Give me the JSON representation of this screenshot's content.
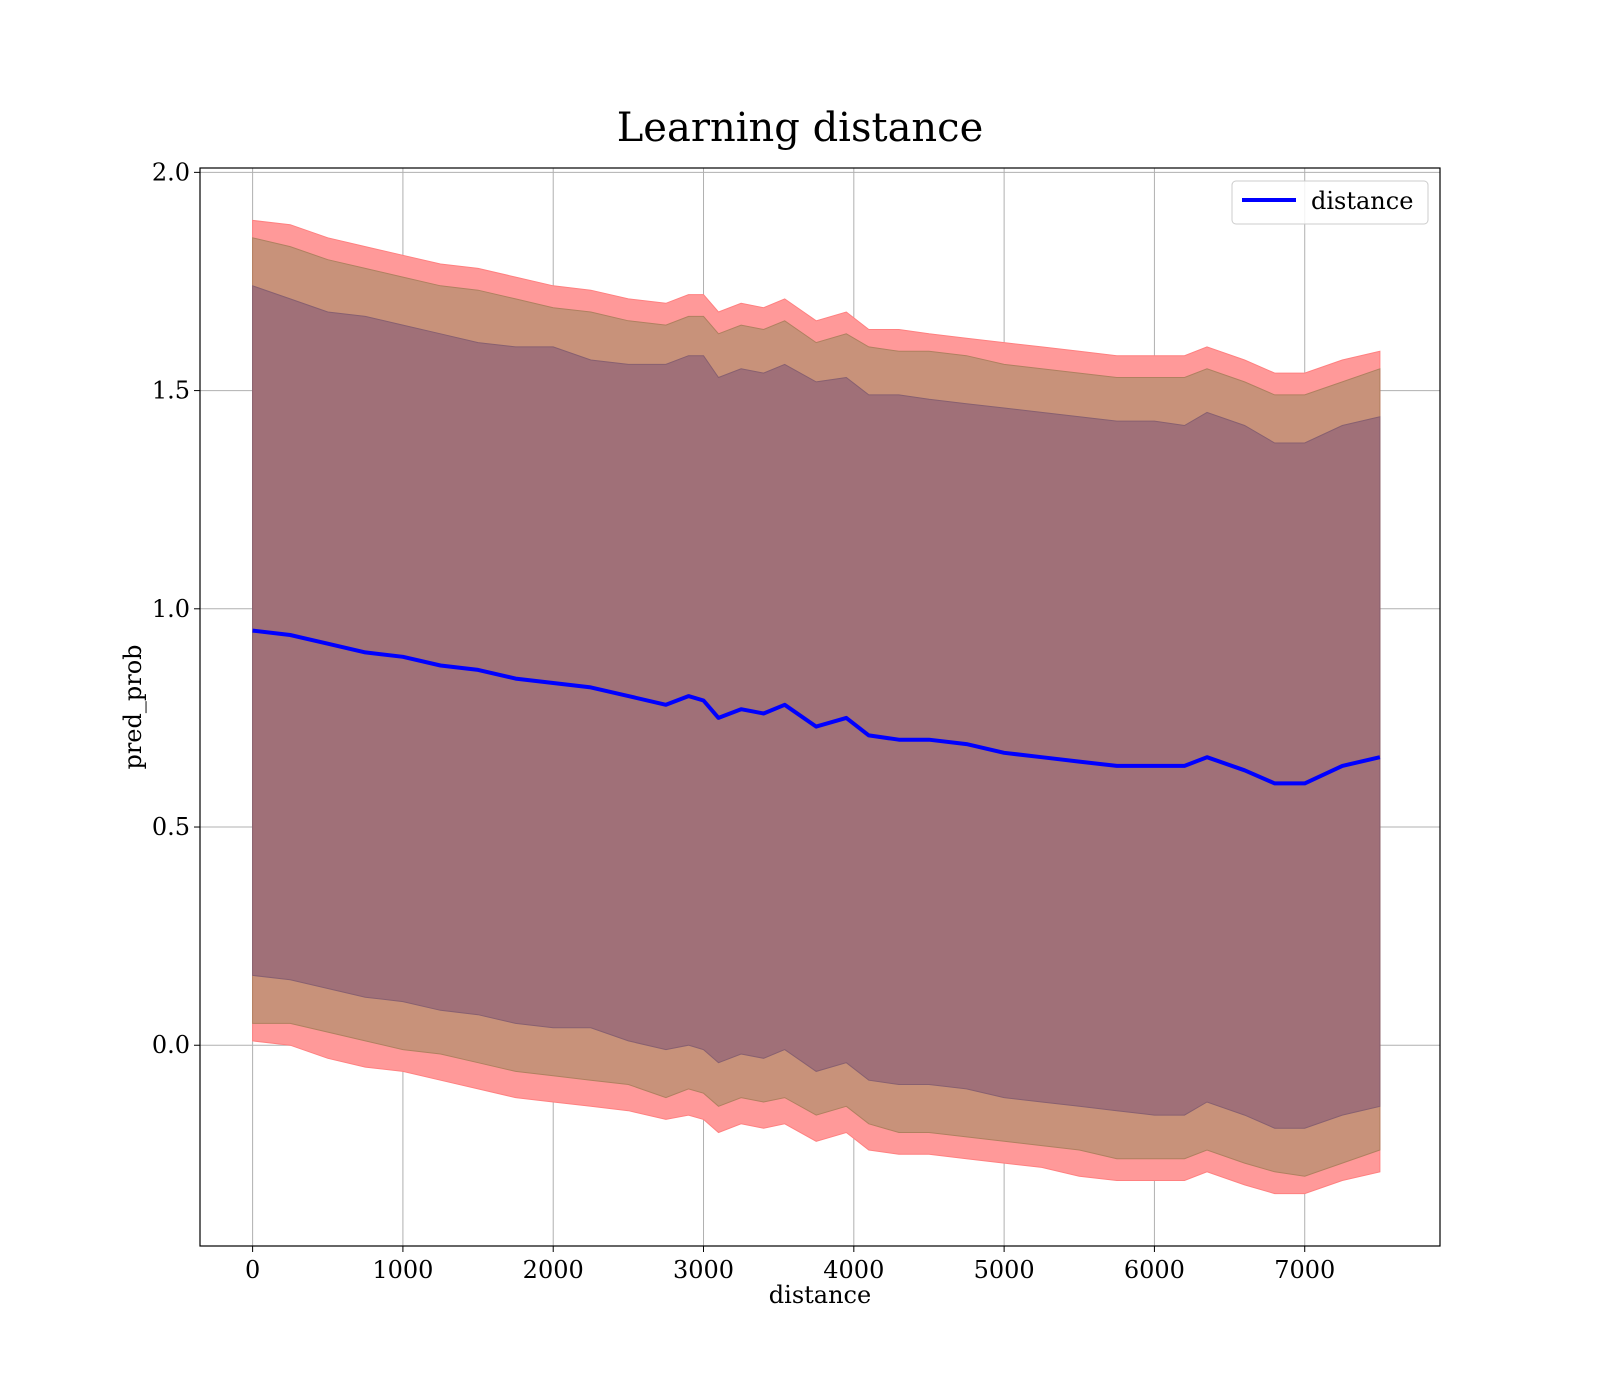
{
  "chart_data": {
    "type": "area",
    "title": "Learning distance",
    "xlabel": "distance",
    "ylabel": "pred_prob",
    "xlim": [
      -350,
      7900
    ],
    "ylim": [
      -0.46,
      2.01
    ],
    "xticks": [
      0,
      1000,
      2000,
      3000,
      4000,
      5000,
      6000,
      7000
    ],
    "yticks": [
      0.0,
      0.5,
      1.0,
      1.5,
      2.0
    ],
    "xtick_labels": [
      "0",
      "1000",
      "2000",
      "3000",
      "4000",
      "5000",
      "6000",
      "7000"
    ],
    "ytick_labels": [
      "0.0",
      "0.5",
      "1.0",
      "1.5",
      "2.0"
    ],
    "grid": true,
    "legend": {
      "position": "upper-right",
      "entries": [
        "distance"
      ]
    },
    "colors": {
      "line": "#0000ff",
      "band_outer": "#ff9999",
      "band_mid": "#c8927a",
      "band_inner": "#a07078",
      "grid": "#b0b0b0"
    },
    "series": [
      {
        "name": "distance",
        "x": [
          0,
          250,
          500,
          750,
          1000,
          1250,
          1500,
          1750,
          2000,
          2250,
          2500,
          2750,
          2900,
          3000,
          3100,
          3250,
          3400,
          3540,
          3750,
          3950,
          4100,
          4300,
          4500,
          4750,
          5000,
          5250,
          5500,
          5750,
          6000,
          6200,
          6350,
          6600,
          6800,
          7000,
          7250,
          7500
        ],
        "y": [
          0.95,
          0.94,
          0.92,
          0.9,
          0.89,
          0.87,
          0.86,
          0.84,
          0.83,
          0.82,
          0.8,
          0.78,
          0.8,
          0.79,
          0.75,
          0.77,
          0.76,
          0.78,
          0.73,
          0.75,
          0.71,
          0.7,
          0.7,
          0.69,
          0.67,
          0.66,
          0.65,
          0.64,
          0.64,
          0.64,
          0.66,
          0.63,
          0.6,
          0.6,
          0.64,
          0.66
        ],
        "band_inner_upper": [
          1.74,
          1.71,
          1.68,
          1.67,
          1.65,
          1.63,
          1.61,
          1.6,
          1.6,
          1.57,
          1.56,
          1.56,
          1.58,
          1.58,
          1.53,
          1.55,
          1.54,
          1.56,
          1.52,
          1.53,
          1.49,
          1.49,
          1.48,
          1.47,
          1.46,
          1.45,
          1.44,
          1.43,
          1.43,
          1.42,
          1.45,
          1.42,
          1.38,
          1.38,
          1.42,
          1.44
        ],
        "band_inner_lower": [
          0.16,
          0.15,
          0.13,
          0.11,
          0.1,
          0.08,
          0.07,
          0.05,
          0.04,
          0.04,
          0.01,
          -0.01,
          0.0,
          -0.01,
          -0.04,
          -0.02,
          -0.03,
          -0.01,
          -0.06,
          -0.04,
          -0.08,
          -0.09,
          -0.09,
          -0.1,
          -0.12,
          -0.13,
          -0.14,
          -0.15,
          -0.16,
          -0.16,
          -0.13,
          -0.16,
          -0.19,
          -0.19,
          -0.16,
          -0.14
        ],
        "band_mid_upper": [
          1.85,
          1.83,
          1.8,
          1.78,
          1.76,
          1.74,
          1.73,
          1.71,
          1.69,
          1.68,
          1.66,
          1.65,
          1.67,
          1.67,
          1.63,
          1.65,
          1.64,
          1.66,
          1.61,
          1.63,
          1.6,
          1.59,
          1.59,
          1.58,
          1.56,
          1.55,
          1.54,
          1.53,
          1.53,
          1.53,
          1.55,
          1.52,
          1.49,
          1.49,
          1.52,
          1.55
        ],
        "band_mid_lower": [
          0.05,
          0.05,
          0.03,
          0.01,
          -0.01,
          -0.02,
          -0.04,
          -0.06,
          -0.07,
          -0.08,
          -0.09,
          -0.12,
          -0.1,
          -0.11,
          -0.14,
          -0.12,
          -0.13,
          -0.12,
          -0.16,
          -0.14,
          -0.18,
          -0.2,
          -0.2,
          -0.21,
          -0.22,
          -0.23,
          -0.24,
          -0.26,
          -0.26,
          -0.26,
          -0.24,
          -0.27,
          -0.29,
          -0.3,
          -0.27,
          -0.24
        ],
        "band_outer_upper": [
          1.89,
          1.88,
          1.85,
          1.83,
          1.81,
          1.79,
          1.78,
          1.76,
          1.74,
          1.73,
          1.71,
          1.7,
          1.72,
          1.72,
          1.68,
          1.7,
          1.69,
          1.71,
          1.66,
          1.68,
          1.64,
          1.64,
          1.63,
          1.62,
          1.61,
          1.6,
          1.59,
          1.58,
          1.58,
          1.58,
          1.6,
          1.57,
          1.54,
          1.54,
          1.57,
          1.59
        ],
        "band_outer_lower": [
          0.01,
          0.0,
          -0.03,
          -0.05,
          -0.06,
          -0.08,
          -0.1,
          -0.12,
          -0.13,
          -0.14,
          -0.15,
          -0.17,
          -0.16,
          -0.17,
          -0.2,
          -0.18,
          -0.19,
          -0.18,
          -0.22,
          -0.2,
          -0.24,
          -0.25,
          -0.25,
          -0.26,
          -0.27,
          -0.28,
          -0.3,
          -0.31,
          -0.31,
          -0.31,
          -0.29,
          -0.32,
          -0.34,
          -0.34,
          -0.31,
          -0.29
        ]
      }
    ]
  }
}
